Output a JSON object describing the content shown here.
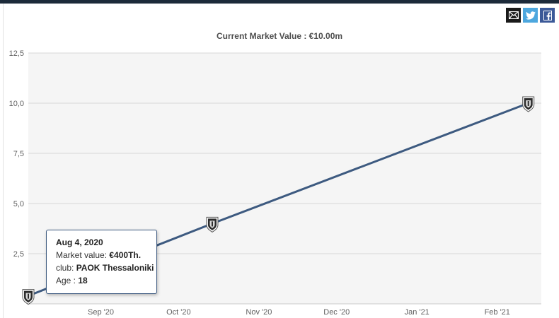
{
  "share": {
    "icons": [
      "envelope-icon",
      "twitter-icon",
      "facebook-icon"
    ]
  },
  "chart_data": {
    "type": "line",
    "title": "Current Market Value : €10.00m",
    "xlabel": "",
    "ylabel": "",
    "y_ticks": [
      "2,5",
      "5,0",
      "7,5",
      "10,0",
      "12,5"
    ],
    "y_tick_values": [
      2.5,
      5.0,
      7.5,
      10.0,
      12.5
    ],
    "ylim": [
      0,
      12.5
    ],
    "x_ticks": [
      "Sep '20",
      "Oct '20",
      "Nov '20",
      "Dec '20",
      "Jan '21",
      "Feb '21"
    ],
    "x_tick_dates": [
      "2020-09-01",
      "2020-10-01",
      "2020-11-01",
      "2020-12-01",
      "2021-01-01",
      "2021-02-01"
    ],
    "xlim": [
      "2020-08-04",
      "2021-02-18"
    ],
    "grid": true,
    "series": [
      {
        "x": [
          "2020-08-04",
          "2020-10-14",
          "2021-02-13"
        ],
        "y": [
          0.4,
          4.0,
          10.0
        ]
      }
    ],
    "colors": {
      "line": "#3d5a80",
      "grid": "#d8d8d8",
      "plot_bg": "#f5f5f5"
    }
  },
  "tooltip": {
    "date": "Aug 4, 2020",
    "market_value_label": "Market value: ",
    "market_value": "€400Th.",
    "club_label": "club: ",
    "club": "PAOK Thessaloniki",
    "age_label": "Age : ",
    "age": "18"
  }
}
